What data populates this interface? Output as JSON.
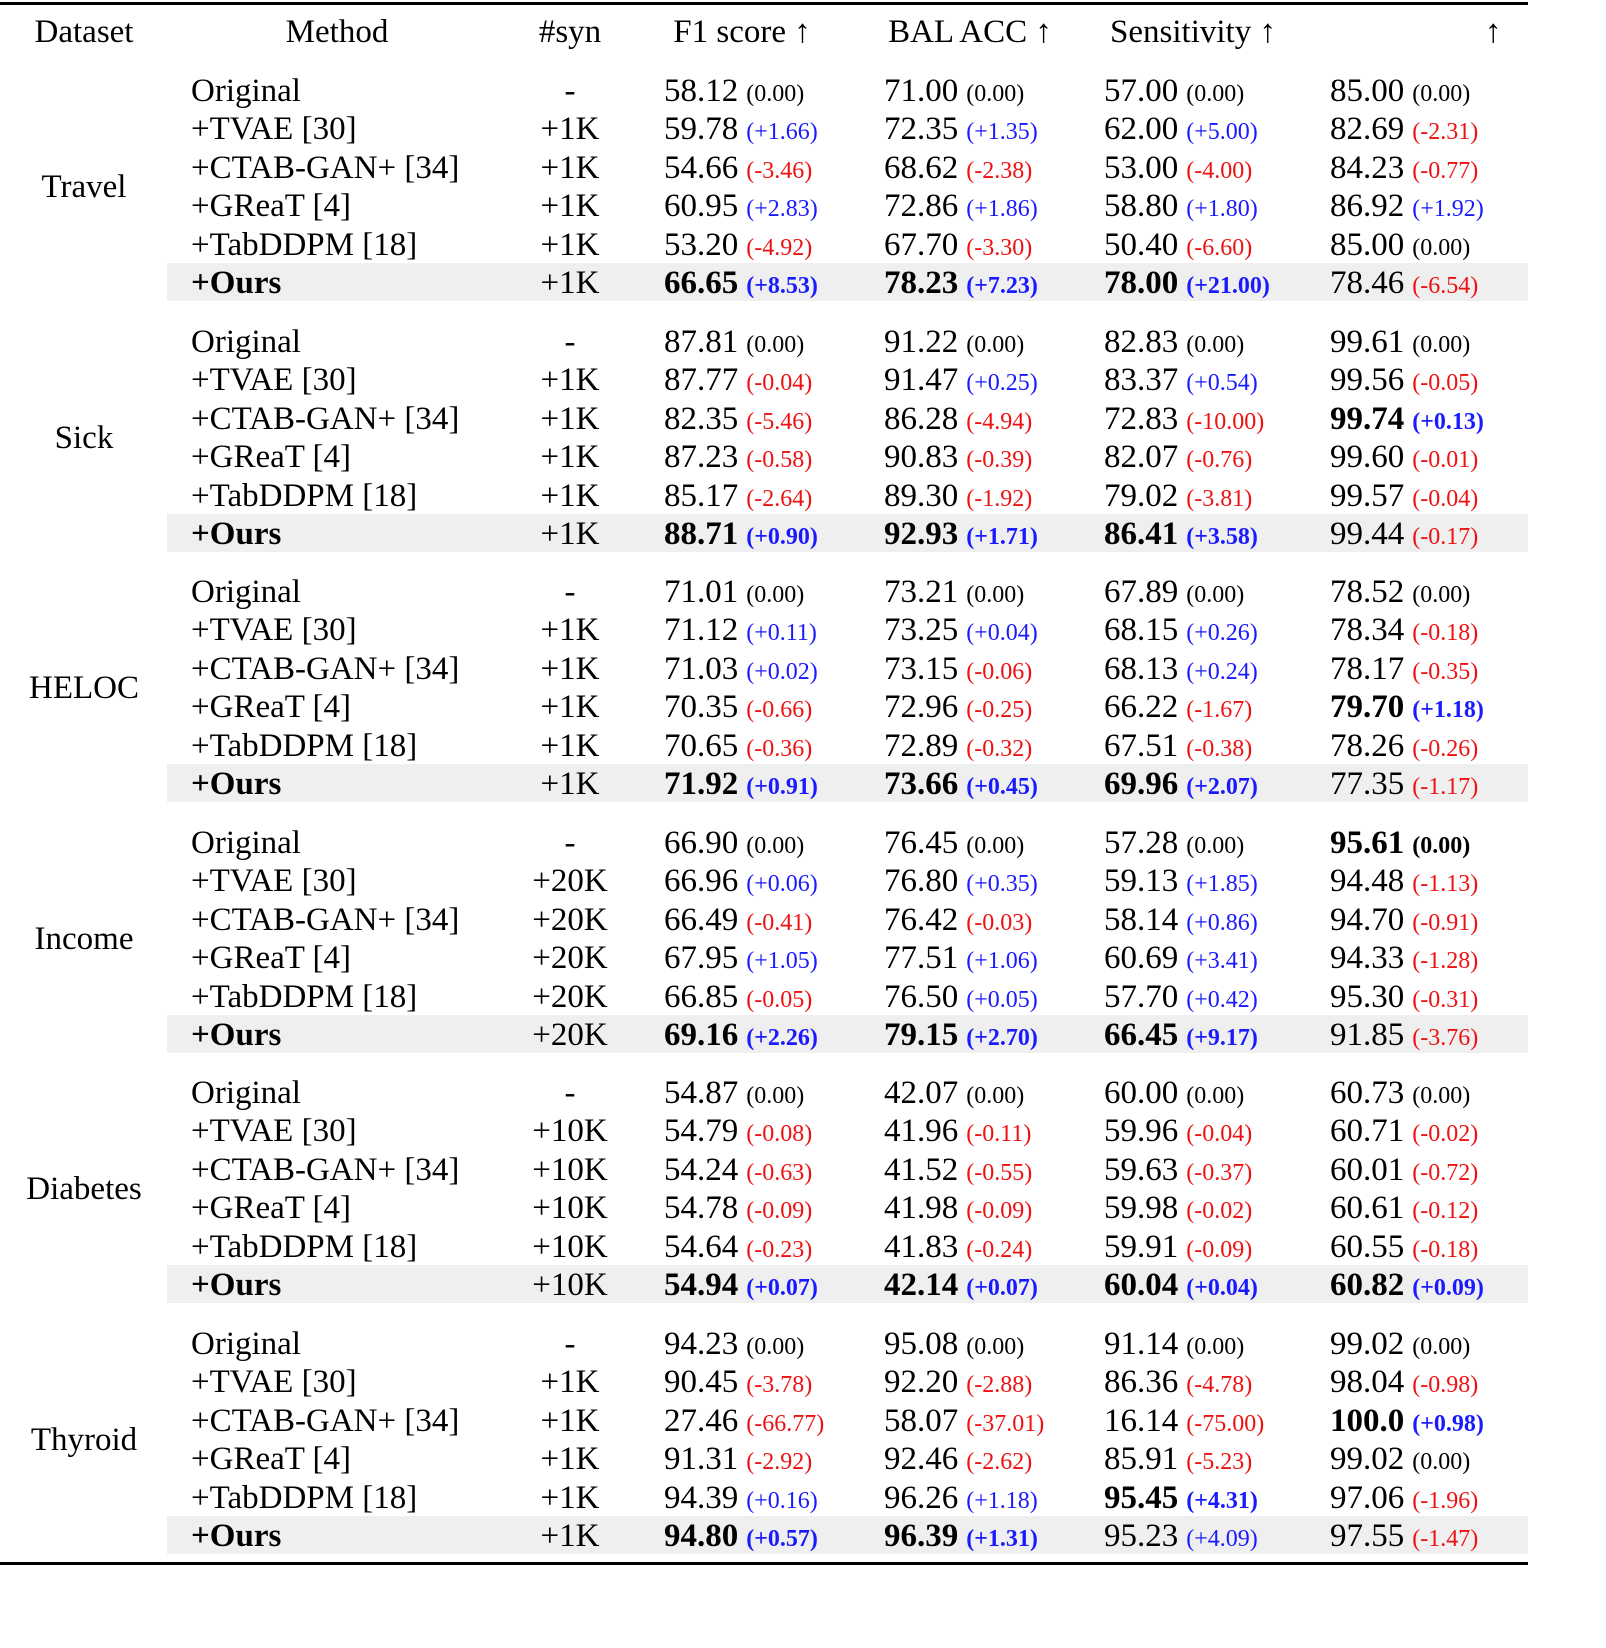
{
  "header": {
    "dataset": "Dataset",
    "method": "Method",
    "syn": "#syn",
    "f1": "F1 score ↑",
    "bal": "BAL ACC ↑",
    "sens": "Sensitivity ↑",
    "spec": "↑"
  },
  "colors": {
    "positive": "#1a1aff",
    "negative": "#ee1111",
    "highlight": "#efefef"
  },
  "groups": [
    {
      "name": "Travel",
      "rows": [
        {
          "method": "Original",
          "syn": "-",
          "f1": [
            "58.12",
            "(0.00)"
          ],
          "bal": [
            "71.00",
            "(0.00)"
          ],
          "sens": [
            "57.00",
            "(0.00)"
          ],
          "spec": [
            "85.00",
            "(0.00)"
          ]
        },
        {
          "method": "+TVAE [30]",
          "syn": "+1K",
          "f1": [
            "59.78",
            "(+1.66)"
          ],
          "bal": [
            "72.35",
            "(+1.35)"
          ],
          "sens": [
            "62.00",
            "(+5.00)"
          ],
          "spec": [
            "82.69",
            "(-2.31)"
          ]
        },
        {
          "method": "+CTAB-GAN+ [34]",
          "syn": "+1K",
          "f1": [
            "54.66",
            "(-3.46)"
          ],
          "bal": [
            "68.62",
            "(-2.38)"
          ],
          "sens": [
            "53.00",
            "(-4.00)"
          ],
          "spec": [
            "84.23",
            "(-0.77)"
          ]
        },
        {
          "method": "+GReaT [4]",
          "syn": "+1K",
          "f1": [
            "60.95",
            "(+2.83)"
          ],
          "bal": [
            "72.86",
            "(+1.86)"
          ],
          "sens": [
            "58.80",
            "(+1.80)"
          ],
          "spec": [
            "86.92",
            "(+1.92)"
          ]
        },
        {
          "method": "+TabDDPM [18]",
          "syn": "+1K",
          "f1": [
            "53.20",
            "(-4.92)"
          ],
          "bal": [
            "67.70",
            "(-3.30)"
          ],
          "sens": [
            "50.40",
            "(-6.60)"
          ],
          "spec": [
            "85.00",
            "(0.00)"
          ]
        },
        {
          "method": "+Ours",
          "syn": "+1K",
          "f1": [
            "66.65",
            "(+8.53)"
          ],
          "bal": [
            "78.23",
            "(+7.23)"
          ],
          "sens": [
            "78.00",
            "(+21.00)"
          ],
          "spec": [
            "78.46",
            "(-6.54)"
          ]
        }
      ]
    },
    {
      "name": "Sick",
      "rows": [
        {
          "method": "Original",
          "syn": "-",
          "f1": [
            "87.81",
            "(0.00)"
          ],
          "bal": [
            "91.22",
            "(0.00)"
          ],
          "sens": [
            "82.83",
            "(0.00)"
          ],
          "spec": [
            "99.61",
            "(0.00)"
          ]
        },
        {
          "method": "+TVAE [30]",
          "syn": "+1K",
          "f1": [
            "87.77",
            "(-0.04)"
          ],
          "bal": [
            "91.47",
            "(+0.25)"
          ],
          "sens": [
            "83.37",
            "(+0.54)"
          ],
          "spec": [
            "99.56",
            "(-0.05)"
          ]
        },
        {
          "method": "+CTAB-GAN+ [34]",
          "syn": "+1K",
          "f1": [
            "82.35",
            "(-5.46)"
          ],
          "bal": [
            "86.28",
            "(-4.94)"
          ],
          "sens": [
            "72.83",
            "(-10.00)"
          ],
          "spec": [
            "99.74",
            "(+0.13)"
          ]
        },
        {
          "method": "+GReaT [4]",
          "syn": "+1K",
          "f1": [
            "87.23",
            "(-0.58)"
          ],
          "bal": [
            "90.83",
            "(-0.39)"
          ],
          "sens": [
            "82.07",
            "(-0.76)"
          ],
          "spec": [
            "99.60",
            "(-0.01)"
          ]
        },
        {
          "method": "+TabDDPM [18]",
          "syn": "+1K",
          "f1": [
            "85.17",
            "(-2.64)"
          ],
          "bal": [
            "89.30",
            "(-1.92)"
          ],
          "sens": [
            "79.02",
            "(-3.81)"
          ],
          "spec": [
            "99.57",
            "(-0.04)"
          ]
        },
        {
          "method": "+Ours",
          "syn": "+1K",
          "f1": [
            "88.71",
            "(+0.90)"
          ],
          "bal": [
            "92.93",
            "(+1.71)"
          ],
          "sens": [
            "86.41",
            "(+3.58)"
          ],
          "spec": [
            "99.44",
            "(-0.17)"
          ]
        }
      ]
    },
    {
      "name": "HELOC",
      "rows": [
        {
          "method": "Original",
          "syn": "-",
          "f1": [
            "71.01",
            "(0.00)"
          ],
          "bal": [
            "73.21",
            "(0.00)"
          ],
          "sens": [
            "67.89",
            "(0.00)"
          ],
          "spec": [
            "78.52",
            "(0.00)"
          ]
        },
        {
          "method": "+TVAE [30]",
          "syn": "+1K",
          "f1": [
            "71.12",
            "(+0.11)"
          ],
          "bal": [
            "73.25",
            "(+0.04)"
          ],
          "sens": [
            "68.15",
            "(+0.26)"
          ],
          "spec": [
            "78.34",
            "(-0.18)"
          ]
        },
        {
          "method": "+CTAB-GAN+ [34]",
          "syn": "+1K",
          "f1": [
            "71.03",
            "(+0.02)"
          ],
          "bal": [
            "73.15",
            "(-0.06)"
          ],
          "sens": [
            "68.13",
            "(+0.24)"
          ],
          "spec": [
            "78.17",
            "(-0.35)"
          ]
        },
        {
          "method": "+GReaT [4]",
          "syn": "+1K",
          "f1": [
            "70.35",
            "(-0.66)"
          ],
          "bal": [
            "72.96",
            "(-0.25)"
          ],
          "sens": [
            "66.22",
            "(-1.67)"
          ],
          "spec": [
            "79.70",
            "(+1.18)"
          ]
        },
        {
          "method": "+TabDDPM [18]",
          "syn": "+1K",
          "f1": [
            "70.65",
            "(-0.36)"
          ],
          "bal": [
            "72.89",
            "(-0.32)"
          ],
          "sens": [
            "67.51",
            "(-0.38)"
          ],
          "spec": [
            "78.26",
            "(-0.26)"
          ]
        },
        {
          "method": "+Ours",
          "syn": "+1K",
          "f1": [
            "71.92",
            "(+0.91)"
          ],
          "bal": [
            "73.66",
            "(+0.45)"
          ],
          "sens": [
            "69.96",
            "(+2.07)"
          ],
          "spec": [
            "77.35",
            "(-1.17)"
          ]
        }
      ]
    },
    {
      "name": "Income",
      "rows": [
        {
          "method": "Original",
          "syn": "-",
          "f1": [
            "66.90",
            "(0.00)"
          ],
          "bal": [
            "76.45",
            "(0.00)"
          ],
          "sens": [
            "57.28",
            "(0.00)"
          ],
          "spec": [
            "95.61",
            "(0.00)"
          ]
        },
        {
          "method": "+TVAE [30]",
          "syn": "+20K",
          "f1": [
            "66.96",
            "(+0.06)"
          ],
          "bal": [
            "76.80",
            "(+0.35)"
          ],
          "sens": [
            "59.13",
            "(+1.85)"
          ],
          "spec": [
            "94.48",
            "(-1.13)"
          ]
        },
        {
          "method": "+CTAB-GAN+ [34]",
          "syn": "+20K",
          "f1": [
            "66.49",
            "(-0.41)"
          ],
          "bal": [
            "76.42",
            "(-0.03)"
          ],
          "sens": [
            "58.14",
            "(+0.86)"
          ],
          "spec": [
            "94.70",
            "(-0.91)"
          ]
        },
        {
          "method": "+GReaT [4]",
          "syn": "+20K",
          "f1": [
            "67.95",
            "(+1.05)"
          ],
          "bal": [
            "77.51",
            "(+1.06)"
          ],
          "sens": [
            "60.69",
            "(+3.41)"
          ],
          "spec": [
            "94.33",
            "(-1.28)"
          ]
        },
        {
          "method": "+TabDDPM [18]",
          "syn": "+20K",
          "f1": [
            "66.85",
            "(-0.05)"
          ],
          "bal": [
            "76.50",
            "(+0.05)"
          ],
          "sens": [
            "57.70",
            "(+0.42)"
          ],
          "spec": [
            "95.30",
            "(-0.31)"
          ]
        },
        {
          "method": "+Ours",
          "syn": "+20K",
          "f1": [
            "69.16",
            "(+2.26)"
          ],
          "bal": [
            "79.15",
            "(+2.70)"
          ],
          "sens": [
            "66.45",
            "(+9.17)"
          ],
          "spec": [
            "91.85",
            "(-3.76)"
          ]
        }
      ]
    },
    {
      "name": "Diabetes",
      "rows": [
        {
          "method": "Original",
          "syn": "-",
          "f1": [
            "54.87",
            "(0.00)"
          ],
          "bal": [
            "42.07",
            "(0.00)"
          ],
          "sens": [
            "60.00",
            "(0.00)"
          ],
          "spec": [
            "60.73",
            "(0.00)"
          ]
        },
        {
          "method": "+TVAE [30]",
          "syn": "+10K",
          "f1": [
            "54.79",
            "(-0.08)"
          ],
          "bal": [
            "41.96",
            "(-0.11)"
          ],
          "sens": [
            "59.96",
            "(-0.04)"
          ],
          "spec": [
            "60.71",
            "(-0.02)"
          ]
        },
        {
          "method": "+CTAB-GAN+ [34]",
          "syn": "+10K",
          "f1": [
            "54.24",
            "(-0.63)"
          ],
          "bal": [
            "41.52",
            "(-0.55)"
          ],
          "sens": [
            "59.63",
            "(-0.37)"
          ],
          "spec": [
            "60.01",
            "(-0.72)"
          ]
        },
        {
          "method": "+GReaT [4]",
          "syn": "+10K",
          "f1": [
            "54.78",
            "(-0.09)"
          ],
          "bal": [
            "41.98",
            "(-0.09)"
          ],
          "sens": [
            "59.98",
            "(-0.02)"
          ],
          "spec": [
            "60.61",
            "(-0.12)"
          ]
        },
        {
          "method": "+TabDDPM [18]",
          "syn": "+10K",
          "f1": [
            "54.64",
            "(-0.23)"
          ],
          "bal": [
            "41.83",
            "(-0.24)"
          ],
          "sens": [
            "59.91",
            "(-0.09)"
          ],
          "spec": [
            "60.55",
            "(-0.18)"
          ]
        },
        {
          "method": "+Ours",
          "syn": "+10K",
          "f1": [
            "54.94",
            "(+0.07)"
          ],
          "bal": [
            "42.14",
            "(+0.07)"
          ],
          "sens": [
            "60.04",
            "(+0.04)"
          ],
          "spec": [
            "60.82",
            "(+0.09)"
          ]
        }
      ]
    },
    {
      "name": "Thyroid",
      "rows": [
        {
          "method": "Original",
          "syn": "-",
          "f1": [
            "94.23",
            "(0.00)"
          ],
          "bal": [
            "95.08",
            "(0.00)"
          ],
          "sens": [
            "91.14",
            "(0.00)"
          ],
          "spec": [
            "99.02",
            "(0.00)"
          ]
        },
        {
          "method": "+TVAE [30]",
          "syn": "+1K",
          "f1": [
            "90.45",
            "(-3.78)"
          ],
          "bal": [
            "92.20",
            "(-2.88)"
          ],
          "sens": [
            "86.36",
            "(-4.78)"
          ],
          "spec": [
            "98.04",
            "(-0.98)"
          ]
        },
        {
          "method": "+CTAB-GAN+ [34]",
          "syn": "+1K",
          "f1": [
            "27.46",
            "(-66.77)"
          ],
          "bal": [
            "58.07",
            "(-37.01)"
          ],
          "sens": [
            "16.14",
            "(-75.00)"
          ],
          "spec": [
            "100.0",
            "(+0.98)"
          ]
        },
        {
          "method": "+GReaT [4]",
          "syn": "+1K",
          "f1": [
            "91.31",
            "(-2.92)"
          ],
          "bal": [
            "92.46",
            "(-2.62)"
          ],
          "sens": [
            "85.91",
            "(-5.23)"
          ],
          "spec": [
            "99.02",
            "(0.00)"
          ]
        },
        {
          "method": "+TabDDPM [18]",
          "syn": "+1K",
          "f1": [
            "94.39",
            "(+0.16)"
          ],
          "bal": [
            "96.26",
            "(+1.18)"
          ],
          "sens": [
            "95.45",
            "(+4.31)"
          ],
          "spec": [
            "97.06",
            "(-1.96)"
          ]
        },
        {
          "method": "+Ours",
          "syn": "+1K",
          "f1": [
            "94.80",
            "(+0.57)"
          ],
          "bal": [
            "96.39",
            "(+1.31)"
          ],
          "sens": [
            "95.23",
            "(+4.09)"
          ],
          "spec": [
            "97.55",
            "(-1.47)"
          ]
        }
      ]
    }
  ]
}
